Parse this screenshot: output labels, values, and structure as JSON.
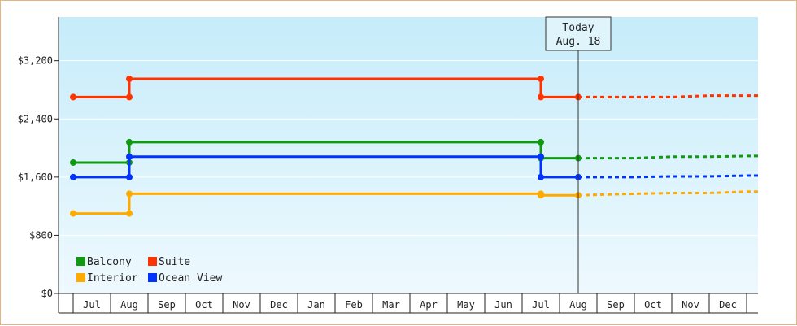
{
  "chart_data": {
    "type": "line",
    "step": true,
    "y_ticks": [
      "$0",
      "$800",
      "$1,600",
      "$2,400",
      "$3,200"
    ],
    "y_tick_values": [
      0,
      800,
      1600,
      2400,
      3200
    ],
    "ylim": [
      0,
      3800
    ],
    "x_months": [
      "Jul",
      "Aug",
      "Sep",
      "Oct",
      "Nov",
      "Dec",
      "Jan",
      "Feb",
      "Mar",
      "Apr",
      "May",
      "Jun",
      "Jul",
      "Aug",
      "Sep",
      "Oct",
      "Nov",
      "Dec"
    ],
    "today": {
      "line1": "Today",
      "line2": "Aug. 18",
      "month_index": 13
    },
    "legend": [
      {
        "name": "Balcony",
        "color": "#119911"
      },
      {
        "name": "Suite",
        "color": "#ff3300"
      },
      {
        "name": "Interior",
        "color": "#ffaa00"
      },
      {
        "name": "Ocean View",
        "color": "#0033ff"
      }
    ],
    "series": [
      {
        "name": "Suite",
        "color": "#ff3300",
        "points": [
          [
            0,
            2700
          ],
          [
            1.5,
            2700
          ],
          [
            1.5,
            2950
          ],
          [
            12.5,
            2950
          ],
          [
            12.5,
            2700
          ],
          [
            13.5,
            2700
          ]
        ],
        "markers": [
          [
            0,
            2700
          ],
          [
            1.5,
            2700
          ],
          [
            1.5,
            2950
          ],
          [
            12.5,
            2950
          ],
          [
            12.5,
            2700
          ],
          [
            13.5,
            2700
          ]
        ],
        "forecast": [
          [
            13.5,
            2700
          ],
          [
            16,
            2700
          ],
          [
            17,
            2720
          ],
          [
            19,
            2720
          ]
        ]
      },
      {
        "name": "Balcony",
        "color": "#119911",
        "points": [
          [
            0,
            1800
          ],
          [
            1.5,
            1800
          ],
          [
            1.5,
            2080
          ],
          [
            12.5,
            2080
          ],
          [
            12.5,
            1860
          ],
          [
            13.5,
            1860
          ]
        ],
        "markers": [
          [
            0,
            1800
          ],
          [
            1.5,
            1800
          ],
          [
            1.5,
            2080
          ],
          [
            12.5,
            2080
          ],
          [
            12.5,
            1860
          ],
          [
            13.5,
            1860
          ]
        ],
        "forecast": [
          [
            13.5,
            1860
          ],
          [
            15,
            1860
          ],
          [
            16,
            1880
          ],
          [
            17,
            1880
          ],
          [
            18,
            1890
          ],
          [
            19,
            1890
          ]
        ]
      },
      {
        "name": "Ocean View",
        "color": "#0033ff",
        "points": [
          [
            0,
            1600
          ],
          [
            1.5,
            1600
          ],
          [
            1.5,
            1880
          ],
          [
            12.5,
            1880
          ],
          [
            12.5,
            1600
          ],
          [
            13.5,
            1600
          ]
        ],
        "markers": [
          [
            0,
            1600
          ],
          [
            1.5,
            1600
          ],
          [
            1.5,
            1880
          ],
          [
            12.5,
            1880
          ],
          [
            12.5,
            1600
          ],
          [
            13.5,
            1600
          ]
        ],
        "forecast": [
          [
            13.5,
            1600
          ],
          [
            15,
            1600
          ],
          [
            16,
            1610
          ],
          [
            17,
            1610
          ],
          [
            18,
            1620
          ],
          [
            19,
            1620
          ]
        ]
      },
      {
        "name": "Interior",
        "color": "#ffaa00",
        "points": [
          [
            0,
            1100
          ],
          [
            1.5,
            1100
          ],
          [
            1.5,
            1370
          ],
          [
            12.5,
            1370
          ],
          [
            12.5,
            1350
          ],
          [
            13.5,
            1350
          ]
        ],
        "markers": [
          [
            0,
            1100
          ],
          [
            1.5,
            1100
          ],
          [
            1.5,
            1370
          ],
          [
            12.5,
            1370
          ],
          [
            12.5,
            1350
          ],
          [
            13.5,
            1350
          ]
        ],
        "forecast": [
          [
            13.5,
            1350
          ],
          [
            15,
            1370
          ],
          [
            16,
            1380
          ],
          [
            17,
            1380
          ],
          [
            18,
            1400
          ],
          [
            19,
            1400
          ]
        ]
      }
    ]
  }
}
